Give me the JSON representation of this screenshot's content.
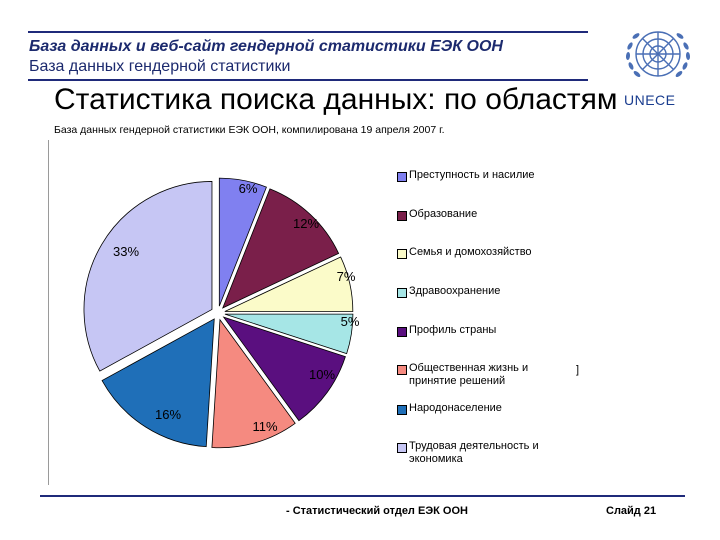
{
  "header": {
    "line1": "База данных и веб-сайт гендерной статистики ЕЭК ООН",
    "line2": "База данных гендерной статистики"
  },
  "slide_title": "Статистика поиска данных: по областям",
  "source_note": "База данных гендерной статистики ЕЭК ООН, компилирована 19 апреля 2007 г.",
  "logo": {
    "icon": "un-emblem-icon",
    "text": "UNECE",
    "color": "#1a3d8f"
  },
  "chart_data": {
    "type": "pie",
    "title": "",
    "start_angle_deg": 0,
    "direction": "clockwise",
    "slices": [
      {
        "name": "Преступность и насилие",
        "value": 6,
        "label": "6%",
        "color": "#8080f0"
      },
      {
        "name": "Образование",
        "value": 12,
        "label": "12%",
        "color": "#7a1f4a"
      },
      {
        "name": "Семья и домохозяйство",
        "value": 7,
        "label": "7%",
        "color": "#fbfbc9"
      },
      {
        "name": "Здравоохранение",
        "value": 5,
        "label": "5%",
        "color": "#a6e6e6"
      },
      {
        "name": "Профиль страны",
        "value": 10,
        "label": "10%",
        "color": "#5a0f7f"
      },
      {
        "name": "Общественная жизнь и принятие решений",
        "value": 11,
        "label": "11%",
        "color": "#f58a80"
      },
      {
        "name": "Народонаселение",
        "value": 16,
        "label": "16%",
        "color": "#1f6fb8"
      },
      {
        "name": "Трудовая деятельность и экономика",
        "value": 33,
        "label": "33%",
        "color": "#c6c6f4"
      }
    ],
    "legend_position": "right",
    "legend": [
      [
        "Преступность и насилие"
      ],
      [
        "Образование"
      ],
      [
        "Семья и домохозяйство"
      ],
      [
        "Здравоохранение"
      ],
      [
        "Профиль страны"
      ],
      [
        "Общественная жизнь и",
        "принятие решений"
      ],
      [
        "Народонаселение"
      ],
      [
        "Трудовая деятельность и",
        "экономика"
      ]
    ]
  },
  "stray_mark": "]",
  "footer": {
    "source": "- Статистический отдел ЕЭК ООН",
    "slide": "Слайд 21"
  }
}
